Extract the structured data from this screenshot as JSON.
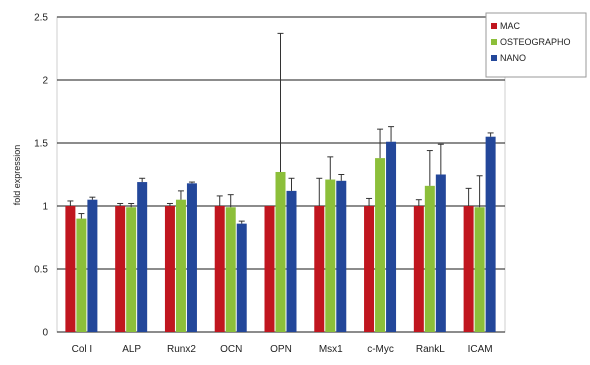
{
  "chart_data": {
    "type": "bar",
    "title": "",
    "xlabel": "",
    "ylabel": "fold expression",
    "ylim": [
      0,
      2.5
    ],
    "yticks": [
      "0",
      "0.5",
      "1",
      "1.5",
      "2",
      "2.5"
    ],
    "grid": true,
    "legend_position": "top-right",
    "categories": [
      "Col I",
      "ALP",
      "Runx2",
      "OCN",
      "OPN",
      "Msx1",
      "c-Myc",
      "RankL",
      "ICAM"
    ],
    "series": [
      {
        "name": "MAC",
        "color": "#c0161f",
        "values": [
          1.0,
          1.0,
          1.0,
          1.0,
          1.0,
          1.0,
          1.0,
          1.0,
          1.0
        ],
        "errors": [
          0.04,
          0.02,
          0.02,
          0.08,
          0.0,
          0.22,
          0.06,
          0.05,
          0.14
        ]
      },
      {
        "name": "OSTEOGRAPHO",
        "color": "#8cbf3a",
        "values": [
          0.9,
          0.99,
          1.05,
          0.99,
          1.27,
          1.21,
          1.38,
          1.16,
          0.99
        ],
        "errors": [
          0.04,
          0.03,
          0.07,
          0.1,
          1.1,
          0.18,
          0.23,
          0.28,
          0.25
        ]
      },
      {
        "name": "NANO",
        "color": "#23479a",
        "values": [
          1.05,
          1.19,
          1.18,
          0.86,
          1.12,
          1.2,
          1.51,
          1.25,
          1.55
        ],
        "errors": [
          0.02,
          0.03,
          0.01,
          0.02,
          0.1,
          0.05,
          0.12,
          0.24,
          0.03
        ]
      }
    ]
  }
}
